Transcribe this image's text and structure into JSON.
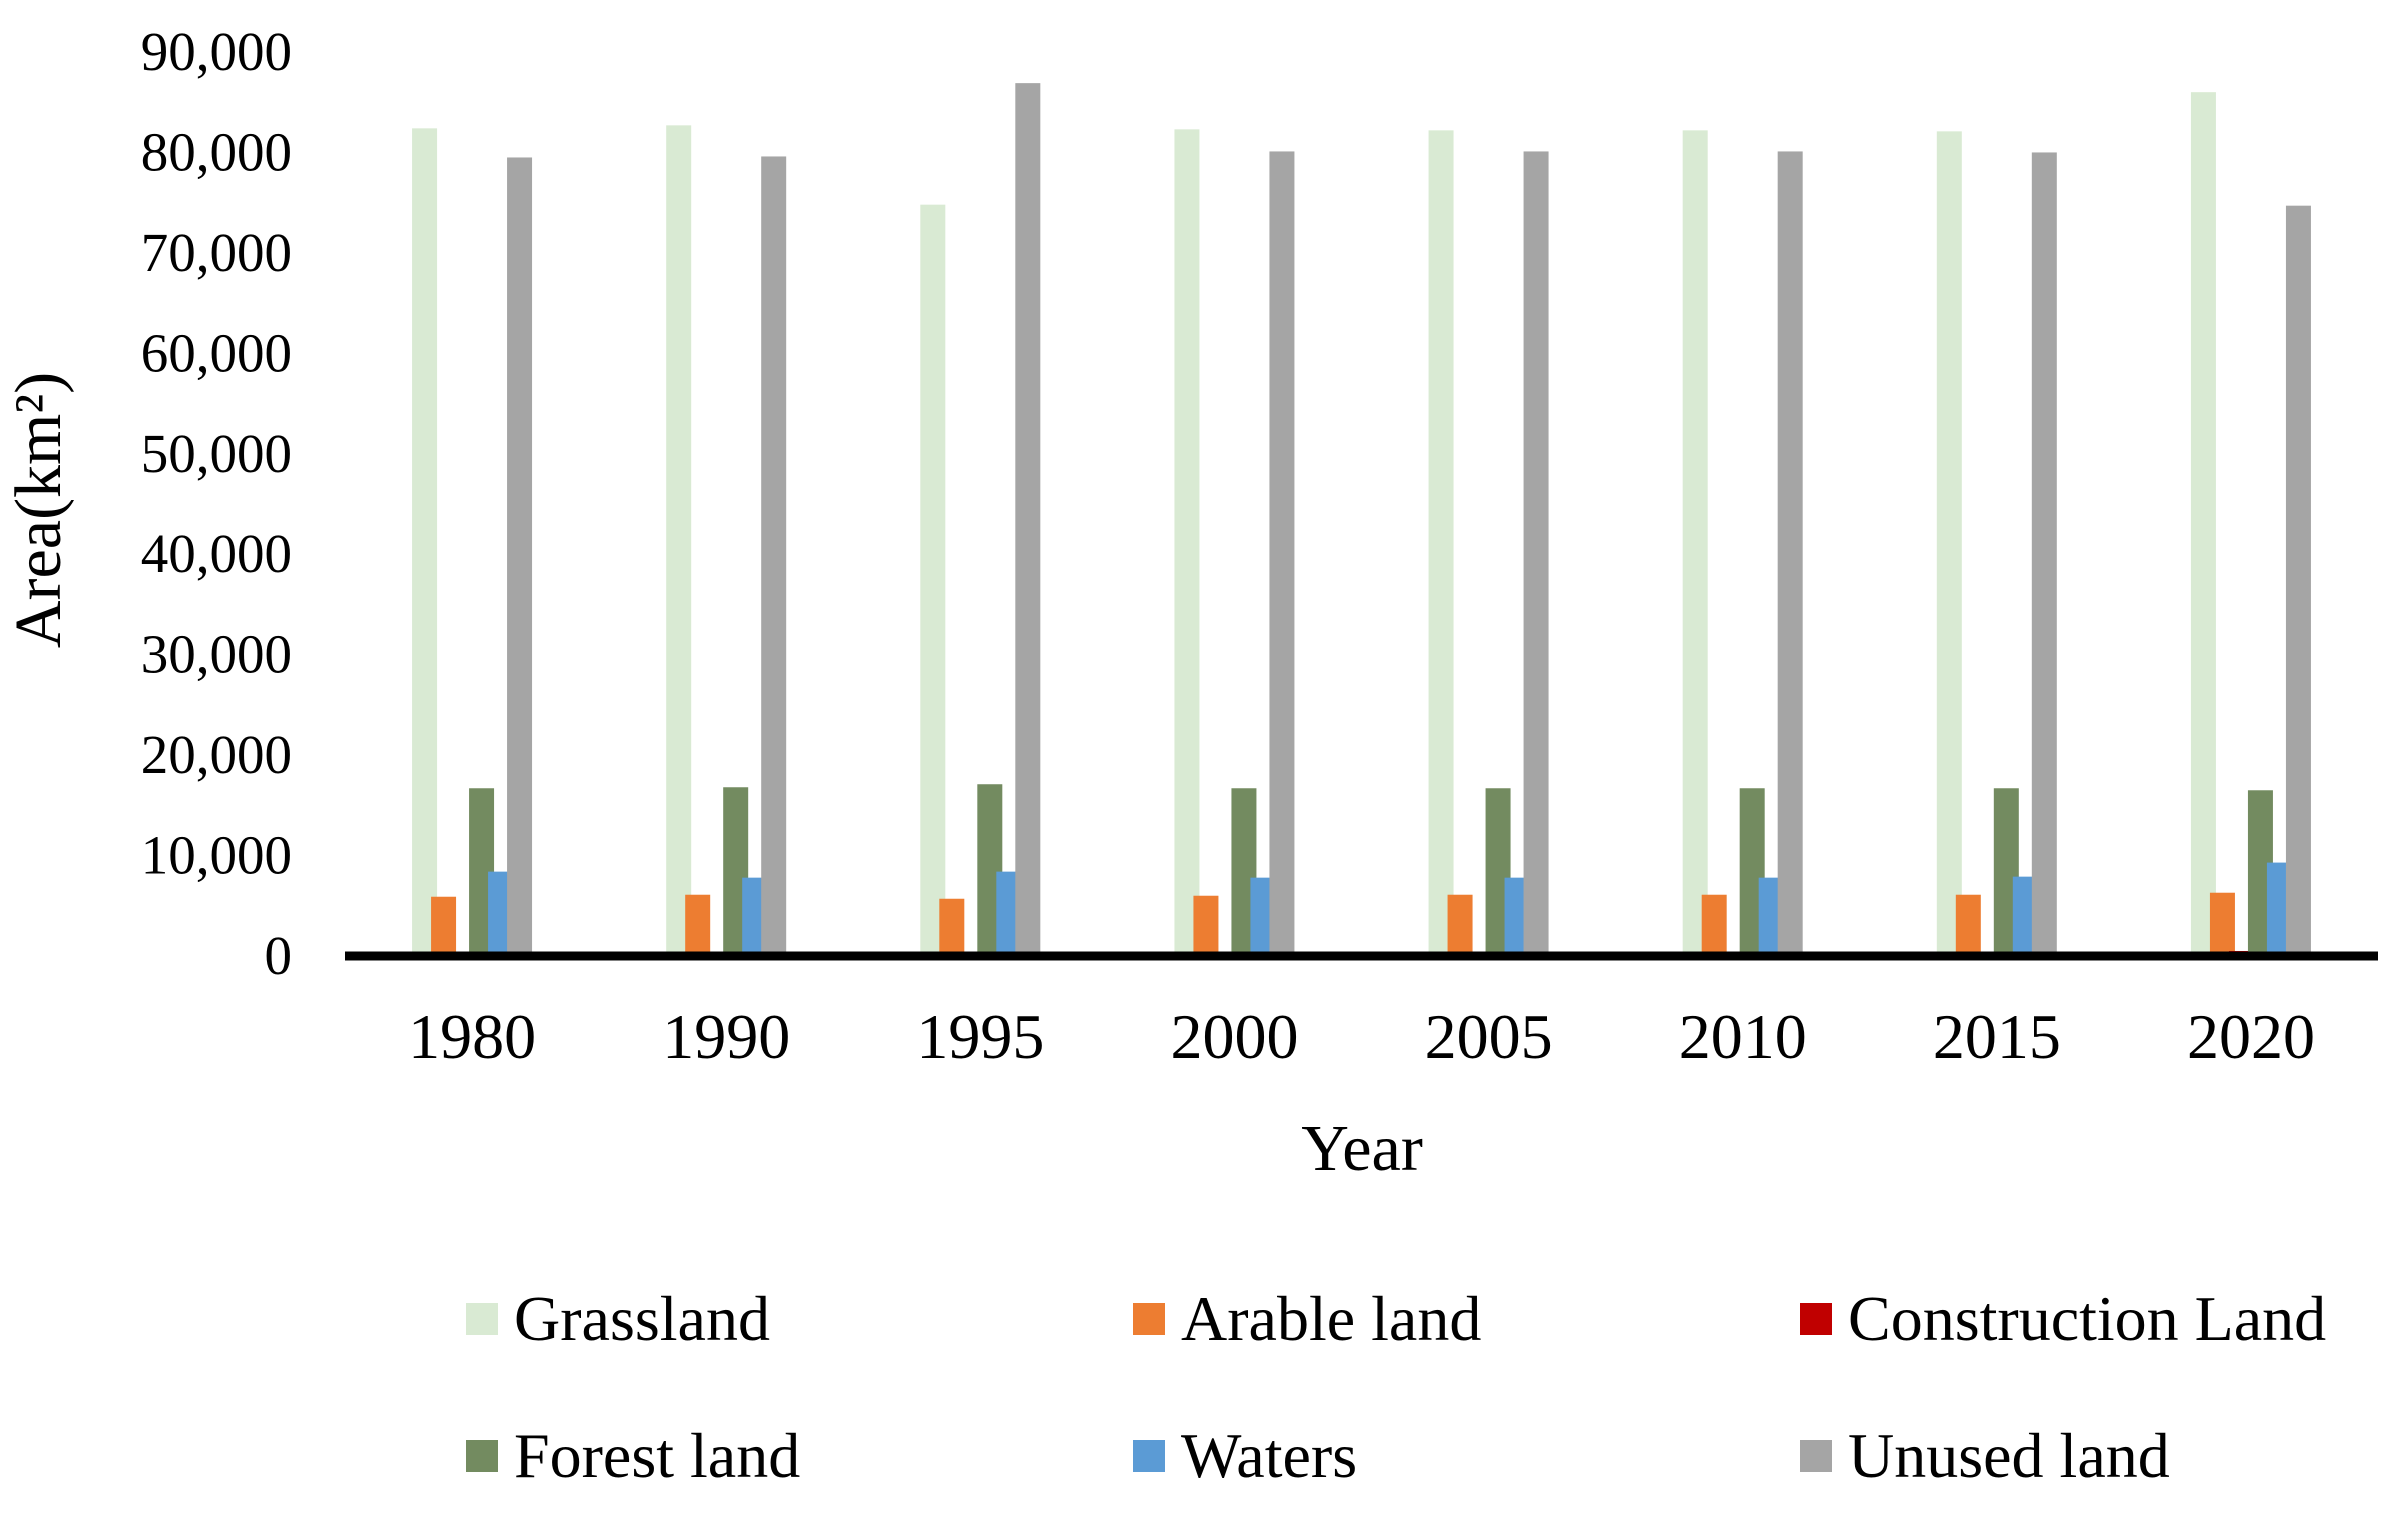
{
  "chart_data": {
    "type": "bar",
    "title": "",
    "xlabel": "Year",
    "ylabel": "Area(km²)",
    "ylim": [
      0,
      90000
    ],
    "yticks": [
      0,
      10000,
      20000,
      30000,
      40000,
      50000,
      60000,
      70000,
      80000,
      90000
    ],
    "ytick_labels": [
      "0",
      "10,000",
      "20,000",
      "30,000",
      "40,000",
      "50,000",
      "60,000",
      "70,000",
      "80,000",
      "90,000"
    ],
    "grid": false,
    "legend_position": "bottom",
    "categories": [
      "1980",
      "1990",
      "1995",
      "2000",
      "2005",
      "2010",
      "2015",
      "2020"
    ],
    "series": [
      {
        "name": "Grassland",
        "color": "#D9EAD3",
        "values": [
          82400,
          82700,
          74800,
          82300,
          82200,
          82200,
          82100,
          86000
        ]
      },
      {
        "name": "Arable land",
        "color": "#ED7D31",
        "values": [
          5900,
          6100,
          5700,
          6000,
          6100,
          6100,
          6100,
          6300
        ]
      },
      {
        "name": "Construction Land",
        "color": "#C00000",
        "values": [
          100,
          100,
          100,
          150,
          150,
          150,
          200,
          500
        ]
      },
      {
        "name": "Forest land",
        "color": "#738B60",
        "values": [
          16700,
          16800,
          17100,
          16700,
          16700,
          16700,
          16700,
          16500
        ]
      },
      {
        "name": "Waters",
        "color": "#5B9BD5",
        "values": [
          8400,
          7800,
          8400,
          7800,
          7800,
          7800,
          7900,
          9300
        ]
      },
      {
        "name": "Unused land",
        "color": "#A5A5A5",
        "values": [
          79500,
          79600,
          86900,
          80100,
          80100,
          80100,
          80000,
          74700
        ]
      }
    ]
  }
}
